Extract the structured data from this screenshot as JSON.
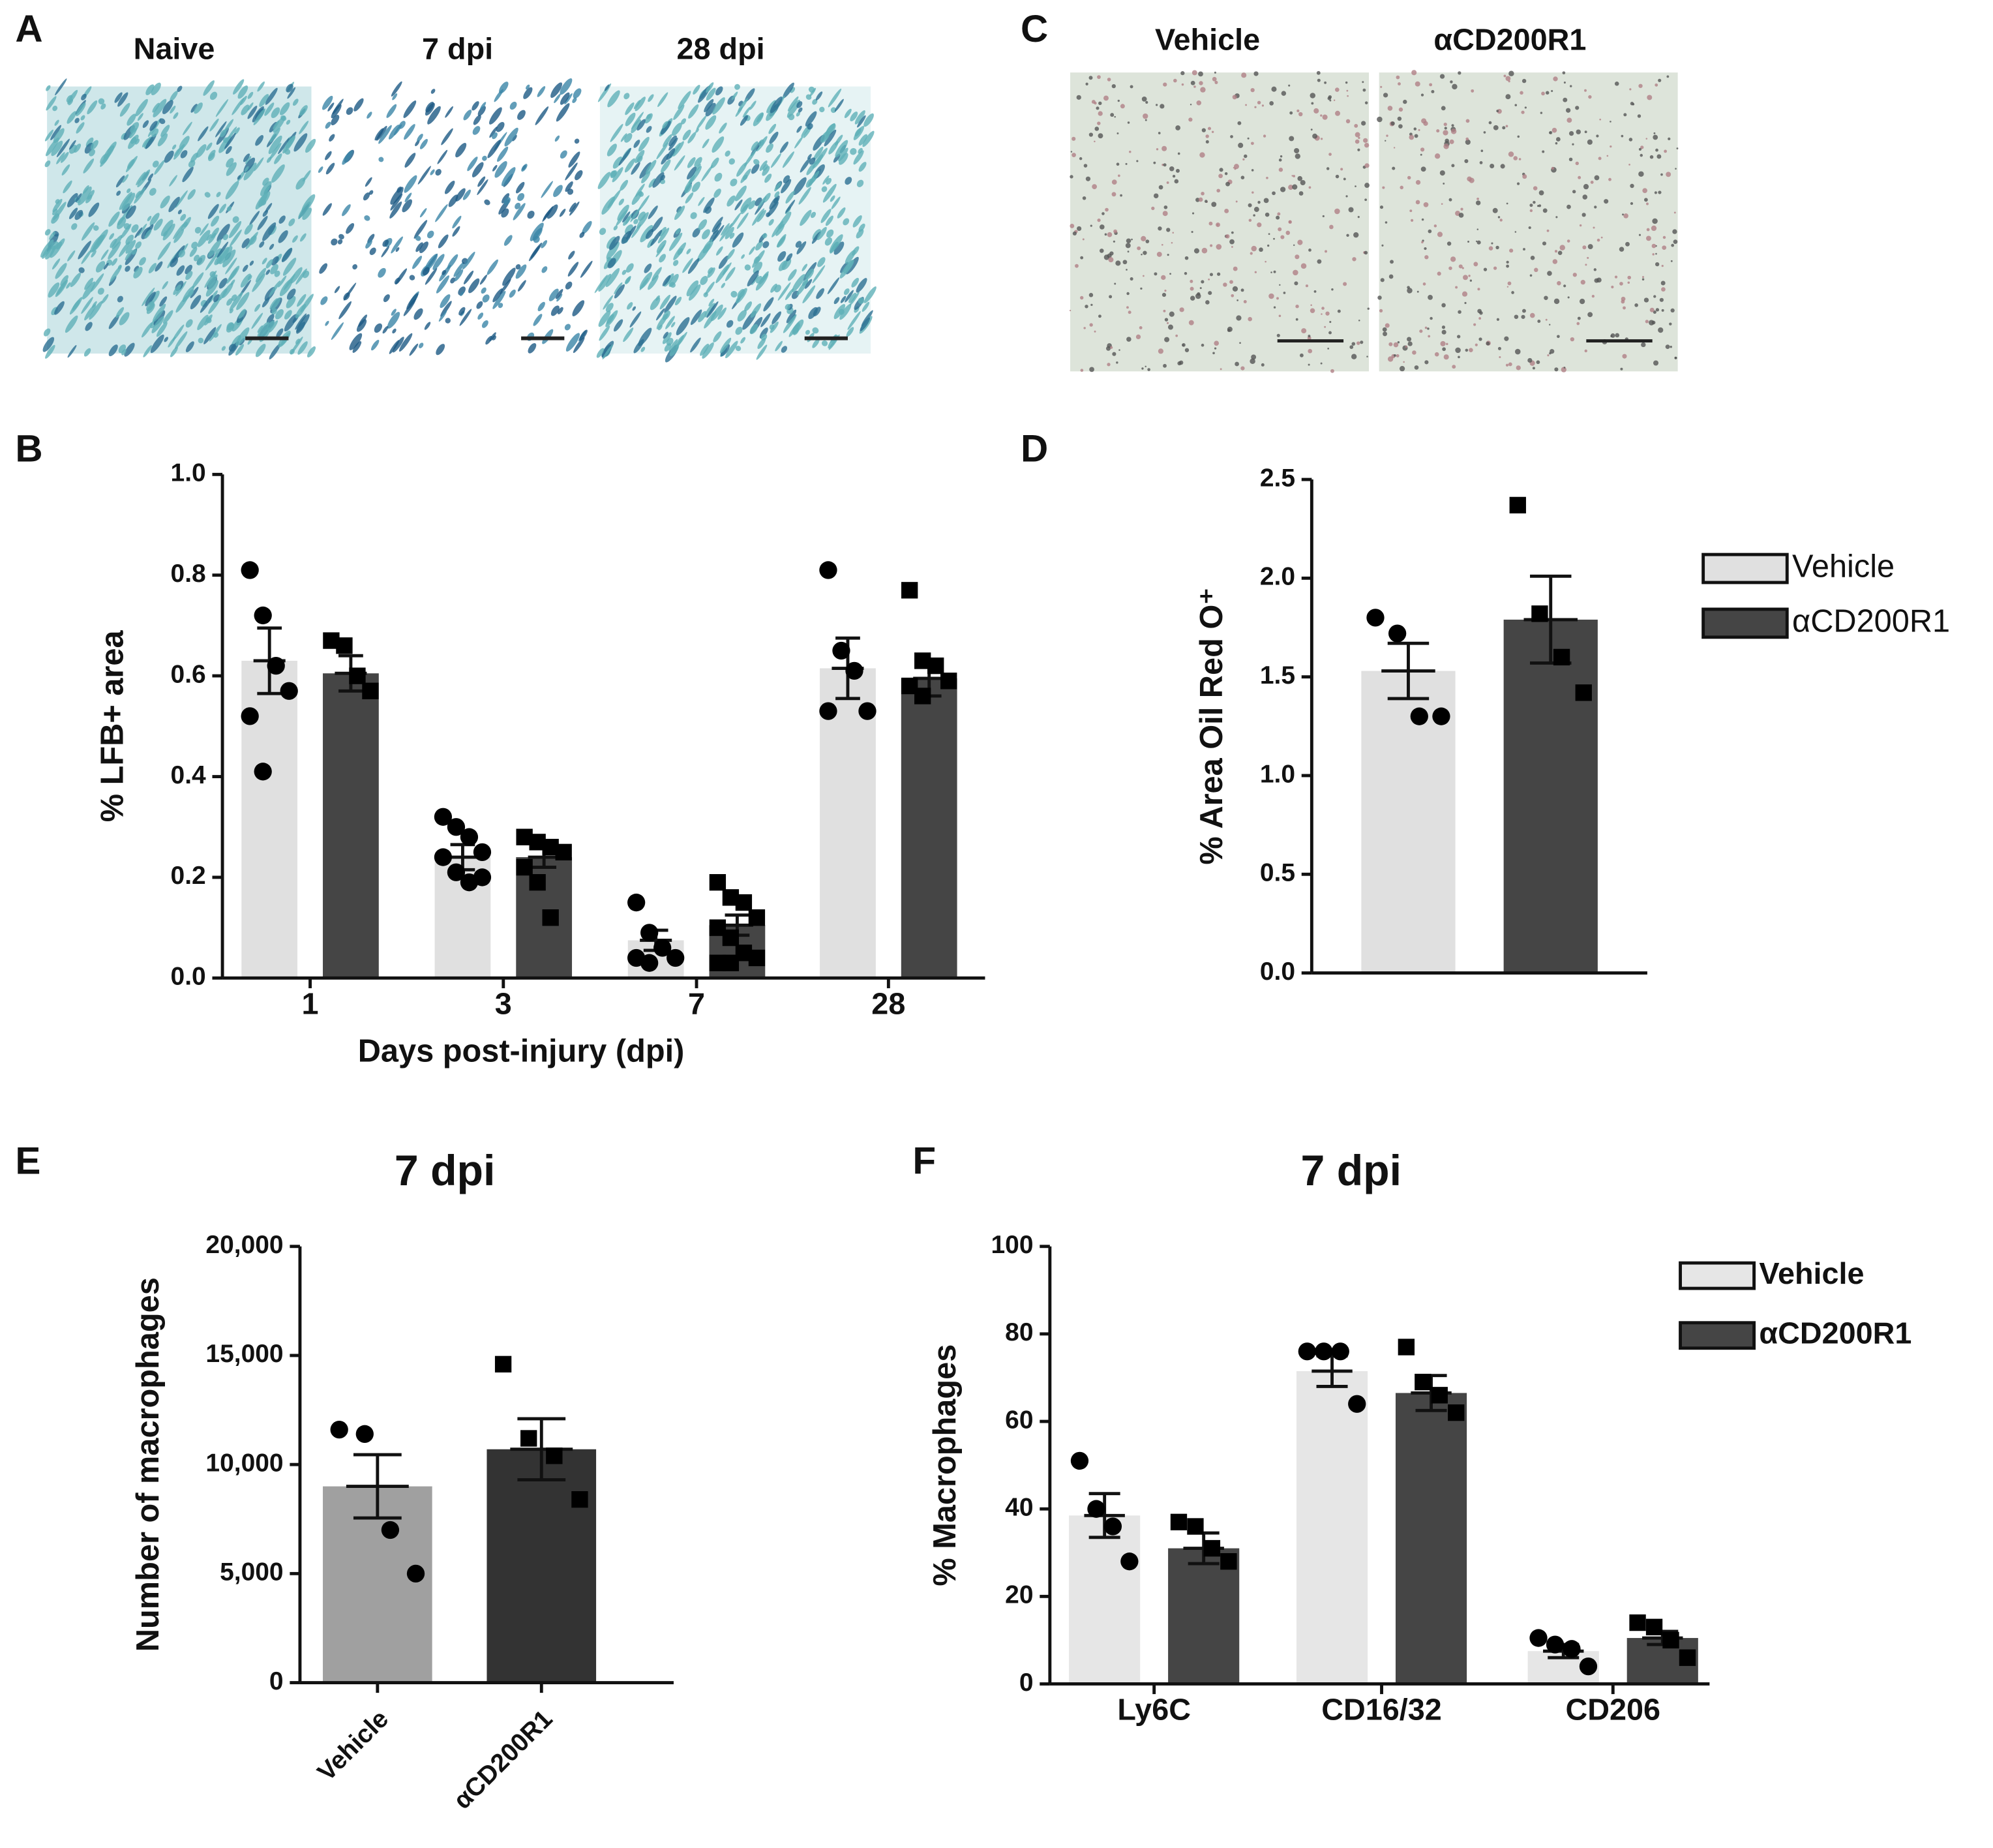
{
  "figure": {
    "image_panels": [
      {
        "panel": "A",
        "captions": [
          "Naive",
          "7 dpi",
          "28 dpi"
        ]
      },
      {
        "panel": "C",
        "captions": [
          "Vehicle",
          "αCD200R1"
        ]
      }
    ]
  },
  "chart_data": [
    {
      "type": "bar",
      "panel": "B",
      "x_label": "Days post-injury (dpi)",
      "y_label": "% LFB+ area",
      "categories": [
        "1",
        "3",
        "7",
        "28"
      ],
      "ylim": [
        0,
        1
      ],
      "yticks": [
        {
          "value": 0,
          "label": "0.0"
        },
        0.2,
        0.4,
        0.6,
        0.8,
        {
          "value": 1,
          "label": "1.0"
        }
      ],
      "series": [
        {
          "color": "#e0e0e0",
          "marker": "circle",
          "values": [
            0.63,
            0.24,
            0.075,
            0.615
          ],
          "errors": [
            0.065,
            0.025,
            0.02,
            0.06
          ],
          "points": [
            [
              0.81,
              0.72,
              0.62,
              0.57,
              0.52,
              0.41
            ],
            [
              0.32,
              0.3,
              0.28,
              0.25,
              0.24,
              0.21,
              0.19,
              0.2
            ],
            [
              0.15,
              0.09,
              0.06,
              0.04,
              0.04,
              0.03
            ],
            [
              0.81,
              0.65,
              0.61,
              0.53,
              0.53
            ]
          ]
        },
        {
          "color": "#454545",
          "marker": "square",
          "values": [
            0.605,
            0.24,
            0.105,
            0.595
          ],
          "errors": [
            0.035,
            0.02,
            0.02,
            0.035
          ],
          "points": [
            [
              0.67,
              0.66,
              0.6,
              0.57
            ],
            [
              0.28,
              0.27,
              0.26,
              0.25,
              0.22,
              0.19,
              0.12
            ],
            [
              0.19,
              0.16,
              0.15,
              0.12,
              0.1,
              0.08,
              0.05,
              0.04,
              0.03,
              0.03
            ],
            [
              0.77,
              0.63,
              0.62,
              0.59,
              0.58,
              0.56
            ]
          ]
        }
      ]
    },
    {
      "type": "bar",
      "panel": "D",
      "y_label": "% Area Oil Red O⁺",
      "categories": [
        null
      ],
      "ylim": [
        0,
        2.5
      ],
      "yticks": [
        {
          "value": 0,
          "label": "0.0"
        },
        0.5,
        {
          "value": 1,
          "label": "1.0"
        },
        1.5,
        {
          "value": 2,
          "label": "2.0"
        },
        2.5
      ],
      "series": [
        {
          "name": "Vehicle",
          "color": "#e0e0e0",
          "marker": "circle",
          "values": [
            1.53
          ],
          "errors": [
            0.14
          ],
          "points": [
            [
              1.8,
              1.72,
              1.3,
              1.3
            ]
          ]
        },
        {
          "name": "αCD200R1",
          "color": "#454545",
          "marker": "square",
          "values": [
            1.79
          ],
          "errors": [
            0.22
          ],
          "points": [
            [
              2.37,
              1.82,
              1.6,
              1.42
            ]
          ]
        }
      ]
    },
    {
      "type": "bar",
      "panel": "E",
      "title": "7 dpi",
      "y_label": "Number of macrophages",
      "categories": [
        "Vehicle",
        "αCD200R1"
      ],
      "values": [
        9000,
        10700
      ],
      "errors": [
        1450,
        1400
      ],
      "colors": [
        "#a0a0a0",
        "#333333"
      ],
      "markers": [
        "circle",
        "square"
      ],
      "points": [
        [
          11600,
          11400,
          7000,
          5000
        ],
        [
          14600,
          11200,
          10400,
          8400
        ]
      ],
      "ylim": [
        0,
        20000
      ],
      "yticks": [
        0,
        {
          "value": 5000,
          "label": "5,000"
        },
        {
          "value": 10000,
          "label": "10,000"
        },
        {
          "value": 15000,
          "label": "15,000"
        },
        {
          "value": 20000,
          "label": "20,000"
        }
      ]
    },
    {
      "type": "bar",
      "panel": "F",
      "title": "7 dpi",
      "y_label": "% Macrophages",
      "categories": [
        "Ly6C",
        "CD16/32",
        "CD206"
      ],
      "ylim": [
        0,
        100
      ],
      "yticks": [
        0,
        20,
        40,
        60,
        80,
        100
      ],
      "series": [
        {
          "name": "Vehicle",
          "color": "#e6e6e6",
          "marker": "circle",
          "values": [
            38.5,
            71.5,
            7.5
          ],
          "errors": [
            5,
            3.5,
            1.5
          ],
          "points": [
            [
              51,
              40,
              36,
              28
            ],
            [
              76,
              76,
              76,
              64
            ],
            [
              10.5,
              9,
              8,
              4
            ]
          ]
        },
        {
          "name": "αCD200R1",
          "color": "#454545",
          "marker": "square",
          "values": [
            31,
            66.5,
            10.5
          ],
          "errors": [
            3.5,
            4,
            1.5
          ],
          "points": [
            [
              37,
              36,
              31,
              28
            ],
            [
              77,
              69,
              66,
              62
            ],
            [
              14,
              13,
              10,
              6
            ]
          ]
        }
      ]
    }
  ]
}
